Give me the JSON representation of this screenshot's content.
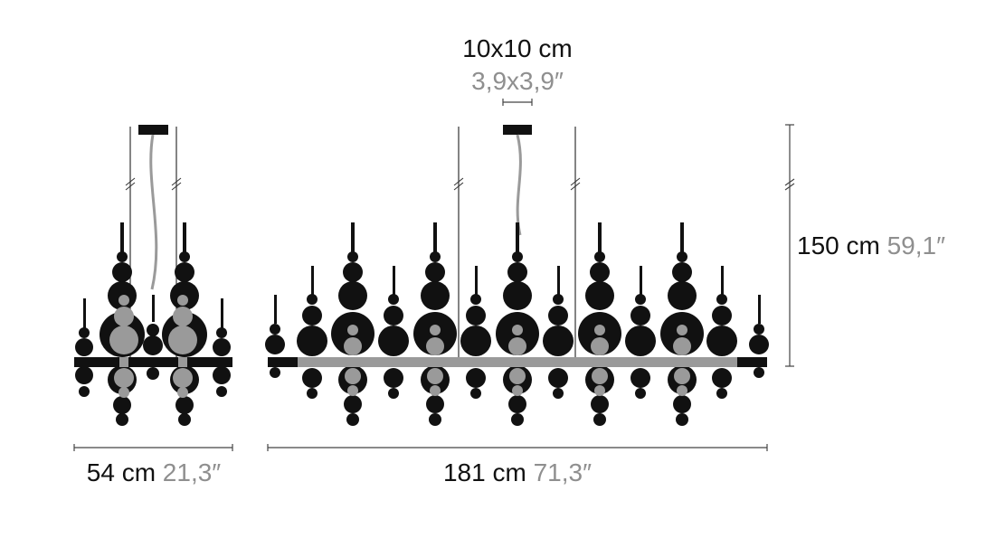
{
  "colors": {
    "primary": "#111111",
    "secondary": "#8f8f8f",
    "line": "#444444"
  },
  "canopy": {
    "metric": "10x10 cm",
    "imperial": "3,9x3,9″"
  },
  "height": {
    "metric": "150 cm",
    "imperial": "59,1″"
  },
  "side_view": {
    "metric": "54 cm",
    "imperial": "21,3″"
  },
  "front_view": {
    "metric": "181 cm",
    "imperial": "71,3″"
  }
}
